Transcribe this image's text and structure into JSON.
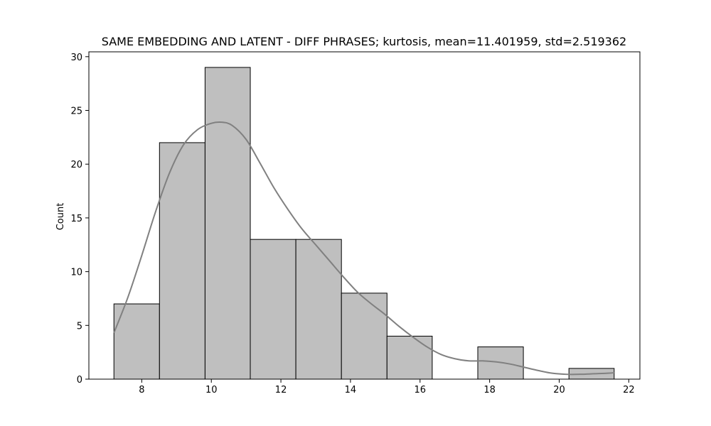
{
  "chart_data": {
    "type": "bar",
    "subtype": "histogram",
    "title": "SAME EMBEDDING AND LATENT - DIFF PHRASES; kurtosis, mean=11.401959, std=2.519362",
    "xlabel": "",
    "ylabel": "Count",
    "xlim": [
      6.48,
      22.32
    ],
    "ylim": [
      0,
      30.45
    ],
    "xticks": [
      8,
      10,
      12,
      14,
      16,
      18,
      20,
      22
    ],
    "yticks": [
      0,
      5,
      10,
      15,
      20,
      25,
      30
    ],
    "bins": [
      {
        "x0": 7.2,
        "x1": 8.51,
        "count": 7
      },
      {
        "x0": 8.51,
        "x1": 9.82,
        "count": 22
      },
      {
        "x0": 9.82,
        "x1": 11.12,
        "count": 29
      },
      {
        "x0": 11.12,
        "x1": 12.43,
        "count": 13
      },
      {
        "x0": 12.43,
        "x1": 13.74,
        "count": 13
      },
      {
        "x0": 13.74,
        "x1": 15.05,
        "count": 8
      },
      {
        "x0": 15.05,
        "x1": 16.35,
        "count": 4
      },
      {
        "x0": 16.35,
        "x1": 17.66,
        "count": 0
      },
      {
        "x0": 17.66,
        "x1": 18.97,
        "count": 3
      },
      {
        "x0": 18.97,
        "x1": 20.28,
        "count": 0
      },
      {
        "x0": 20.28,
        "x1": 21.58,
        "count": 1
      }
    ],
    "kde": {
      "x": [
        7.2,
        7.6,
        8.0,
        8.4,
        8.8,
        9.2,
        9.6,
        10.0,
        10.3,
        10.6,
        11.0,
        11.4,
        11.8,
        12.2,
        12.6,
        13.0,
        13.4,
        13.8,
        14.2,
        14.6,
        15.0,
        15.4,
        15.8,
        16.2,
        16.6,
        17.0,
        17.4,
        17.8,
        18.2,
        18.6,
        19.0,
        19.4,
        19.8,
        20.2,
        20.6,
        21.0,
        21.4,
        21.6
      ],
      "y": [
        4.3,
        7.6,
        11.5,
        15.6,
        19.2,
        21.8,
        23.2,
        23.8,
        23.9,
        23.6,
        22.3,
        20.1,
        17.8,
        15.8,
        14.0,
        12.5,
        11.0,
        9.5,
        8.1,
        7.0,
        6.0,
        4.9,
        3.9,
        3.0,
        2.3,
        1.9,
        1.7,
        1.7,
        1.6,
        1.4,
        1.1,
        0.8,
        0.55,
        0.45,
        0.45,
        0.5,
        0.55,
        0.6
      ]
    },
    "grid": false,
    "colors": {
      "bar_fill": "#bfbfbf",
      "bar_edge": "#000000",
      "kde_line": "#808080"
    }
  }
}
